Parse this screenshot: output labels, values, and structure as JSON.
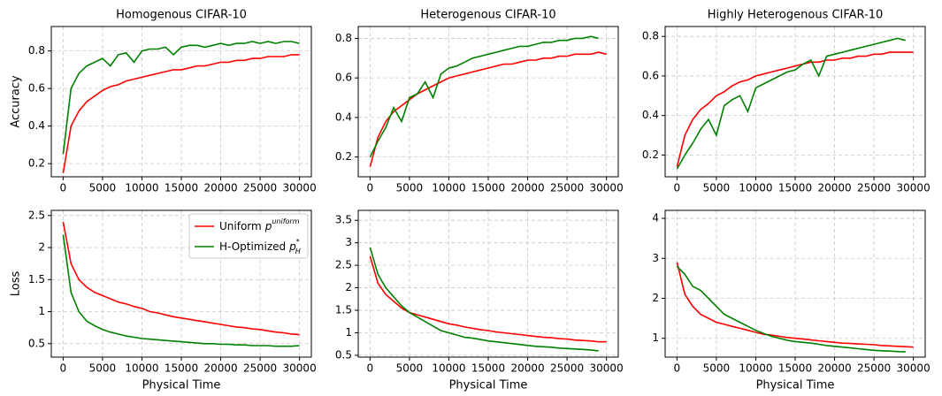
{
  "chart_data": [
    {
      "type": "line",
      "title": "Homogenous CIFAR-10",
      "ylabel": "Accuracy",
      "x": [
        0,
        1000,
        2000,
        3000,
        4000,
        5000,
        6000,
        7000,
        8000,
        9000,
        10000,
        11000,
        12000,
        13000,
        14000,
        15000,
        16000,
        17000,
        18000,
        19000,
        20000,
        21000,
        22000,
        23000,
        24000,
        25000,
        26000,
        27000,
        28000,
        29000,
        30000
      ],
      "series": [
        {
          "name": "Uniform",
          "symbol": "p",
          "sup": "uniform",
          "color": "#ff0000",
          "values": [
            0.15,
            0.4,
            0.48,
            0.53,
            0.56,
            0.59,
            0.61,
            0.62,
            0.64,
            0.65,
            0.66,
            0.67,
            0.68,
            0.69,
            0.7,
            0.7,
            0.71,
            0.72,
            0.72,
            0.73,
            0.74,
            0.74,
            0.75,
            0.75,
            0.76,
            0.76,
            0.77,
            0.77,
            0.77,
            0.78,
            0.78
          ]
        },
        {
          "name": "H-Optimized",
          "symbol": "p",
          "sup": "*",
          "sub": "H",
          "color": "#008000",
          "values": [
            0.25,
            0.6,
            0.68,
            0.72,
            0.74,
            0.76,
            0.72,
            0.78,
            0.79,
            0.74,
            0.8,
            0.81,
            0.81,
            0.82,
            0.78,
            0.82,
            0.83,
            0.83,
            0.82,
            0.83,
            0.84,
            0.83,
            0.84,
            0.84,
            0.85,
            0.84,
            0.85,
            0.84,
            0.85,
            0.85,
            0.84
          ]
        }
      ],
      "xlim": [
        -1500,
        31500
      ],
      "xticks": [
        0,
        5000,
        10000,
        15000,
        20000,
        25000,
        30000
      ],
      "ylim": [
        0.13,
        0.93
      ],
      "yticks": [
        0.2,
        0.4,
        0.6,
        0.8
      ],
      "grid": true,
      "legend": false
    },
    {
      "type": "line",
      "title": "Heterogenous CIFAR-10",
      "x": [
        0,
        1000,
        2000,
        3000,
        4000,
        5000,
        6000,
        7000,
        8000,
        9000,
        10000,
        11000,
        12000,
        13000,
        14000,
        15000,
        16000,
        17000,
        18000,
        19000,
        20000,
        21000,
        22000,
        23000,
        24000,
        25000,
        26000,
        27000,
        28000,
        29000,
        30000
      ],
      "series": [
        {
          "name": "Uniform",
          "symbol": "p",
          "sup": "uniform",
          "color": "#ff0000",
          "values": [
            0.15,
            0.3,
            0.38,
            0.43,
            0.46,
            0.49,
            0.52,
            0.54,
            0.56,
            0.58,
            0.6,
            0.61,
            0.62,
            0.63,
            0.64,
            0.65,
            0.66,
            0.67,
            0.67,
            0.68,
            0.69,
            0.69,
            0.7,
            0.7,
            0.71,
            0.71,
            0.72,
            0.72,
            0.72,
            0.73,
            0.72
          ]
        },
        {
          "name": "H-Optimized",
          "symbol": "p",
          "sup": "*",
          "sub": "H",
          "color": "#008000",
          "values": [
            0.2,
            0.28,
            0.35,
            0.45,
            0.38,
            0.5,
            0.52,
            0.58,
            0.5,
            0.62,
            0.65,
            0.66,
            0.68,
            0.7,
            0.71,
            0.72,
            0.73,
            0.74,
            0.75,
            0.76,
            0.76,
            0.77,
            0.78,
            0.78,
            0.79,
            0.79,
            0.8,
            0.8,
            0.81,
            0.8,
            null
          ]
        }
      ],
      "xlim": [
        -1500,
        31500
      ],
      "xticks": [
        0,
        5000,
        10000,
        15000,
        20000,
        25000,
        30000
      ],
      "ylim": [
        0.1,
        0.86
      ],
      "yticks": [
        0.2,
        0.4,
        0.6,
        0.8
      ],
      "grid": true,
      "legend": false
    },
    {
      "type": "line",
      "title": "Highly Heterogenous CIFAR-10",
      "x": [
        0,
        1000,
        2000,
        3000,
        4000,
        5000,
        6000,
        7000,
        8000,
        9000,
        10000,
        11000,
        12000,
        13000,
        14000,
        15000,
        16000,
        17000,
        18000,
        19000,
        20000,
        21000,
        22000,
        23000,
        24000,
        25000,
        26000,
        27000,
        28000,
        29000,
        30000
      ],
      "series": [
        {
          "name": "Uniform",
          "symbol": "p",
          "sup": "uniform",
          "color": "#ff0000",
          "values": [
            0.14,
            0.3,
            0.38,
            0.43,
            0.46,
            0.5,
            0.52,
            0.55,
            0.57,
            0.58,
            0.6,
            0.61,
            0.62,
            0.63,
            0.64,
            0.65,
            0.66,
            0.67,
            0.67,
            0.68,
            0.68,
            0.69,
            0.69,
            0.7,
            0.7,
            0.71,
            0.71,
            0.72,
            0.72,
            0.72,
            0.72
          ]
        },
        {
          "name": "H-Optimized",
          "symbol": "p",
          "sup": "*",
          "sub": "H",
          "color": "#008000",
          "values": [
            0.13,
            0.2,
            0.26,
            0.33,
            0.38,
            0.3,
            0.45,
            0.48,
            0.5,
            0.42,
            0.54,
            0.56,
            0.58,
            0.6,
            0.62,
            0.63,
            0.66,
            0.68,
            0.6,
            0.7,
            0.71,
            0.72,
            0.73,
            0.74,
            0.75,
            0.76,
            0.77,
            0.78,
            0.79,
            0.78,
            null
          ]
        }
      ],
      "xlim": [
        -1500,
        31500
      ],
      "xticks": [
        0,
        5000,
        10000,
        15000,
        20000,
        25000,
        30000
      ],
      "ylim": [
        0.09,
        0.85
      ],
      "yticks": [
        0.2,
        0.4,
        0.6,
        0.8
      ],
      "grid": true,
      "legend": false
    },
    {
      "type": "line",
      "ylabel": "Loss",
      "xlabel": "Physical Time",
      "x": [
        0,
        1000,
        2000,
        3000,
        4000,
        5000,
        6000,
        7000,
        8000,
        9000,
        10000,
        11000,
        12000,
        13000,
        14000,
        15000,
        16000,
        17000,
        18000,
        19000,
        20000,
        21000,
        22000,
        23000,
        24000,
        25000,
        26000,
        27000,
        28000,
        29000,
        30000
      ],
      "series": [
        {
          "name": "Uniform",
          "symbol": "p",
          "sup": "uniform",
          "color": "#ff0000",
          "values": [
            2.4,
            1.75,
            1.5,
            1.38,
            1.3,
            1.25,
            1.2,
            1.15,
            1.12,
            1.08,
            1.05,
            1.0,
            0.98,
            0.95,
            0.92,
            0.9,
            0.88,
            0.86,
            0.84,
            0.82,
            0.8,
            0.78,
            0.76,
            0.75,
            0.73,
            0.72,
            0.7,
            0.68,
            0.67,
            0.65,
            0.64
          ]
        },
        {
          "name": "H-Optimized",
          "symbol": "p",
          "sup": "*",
          "sub": "H",
          "color": "#008000",
          "values": [
            2.2,
            1.3,
            1.0,
            0.85,
            0.78,
            0.72,
            0.68,
            0.65,
            0.62,
            0.6,
            0.58,
            0.57,
            0.56,
            0.55,
            0.54,
            0.53,
            0.52,
            0.51,
            0.5,
            0.5,
            0.49,
            0.49,
            0.48,
            0.48,
            0.47,
            0.47,
            0.47,
            0.46,
            0.46,
            0.46,
            0.47
          ]
        }
      ],
      "xlim": [
        -1500,
        31500
      ],
      "xticks": [
        0,
        5000,
        10000,
        15000,
        20000,
        25000,
        30000
      ],
      "ylim": [
        0.29,
        2.58
      ],
      "yticks": [
        0.5,
        1.0,
        1.5,
        2.0,
        2.5
      ],
      "grid": true,
      "legend": "upper right"
    },
    {
      "type": "line",
      "xlabel": "Physical Time",
      "x": [
        0,
        1000,
        2000,
        3000,
        4000,
        5000,
        6000,
        7000,
        8000,
        9000,
        10000,
        11000,
        12000,
        13000,
        14000,
        15000,
        16000,
        17000,
        18000,
        19000,
        20000,
        21000,
        22000,
        23000,
        24000,
        25000,
        26000,
        27000,
        28000,
        29000,
        30000
      ],
      "series": [
        {
          "name": "Uniform",
          "symbol": "p",
          "sup": "uniform",
          "color": "#ff0000",
          "values": [
            2.7,
            2.1,
            1.85,
            1.7,
            1.55,
            1.45,
            1.4,
            1.35,
            1.3,
            1.25,
            1.2,
            1.17,
            1.13,
            1.1,
            1.07,
            1.05,
            1.02,
            1.0,
            0.98,
            0.96,
            0.94,
            0.92,
            0.9,
            0.89,
            0.87,
            0.86,
            0.84,
            0.83,
            0.82,
            0.8,
            0.8
          ]
        },
        {
          "name": "H-Optimized",
          "symbol": "p",
          "sup": "*",
          "sub": "H",
          "color": "#008000",
          "values": [
            2.9,
            2.3,
            2.0,
            1.8,
            1.6,
            1.45,
            1.35,
            1.25,
            1.15,
            1.05,
            1.0,
            0.95,
            0.9,
            0.88,
            0.85,
            0.82,
            0.8,
            0.78,
            0.76,
            0.74,
            0.72,
            0.7,
            0.69,
            0.68,
            0.66,
            0.65,
            0.64,
            0.63,
            0.62,
            0.6,
            null
          ]
        }
      ],
      "xlim": [
        -1500,
        31500
      ],
      "xticks": [
        0,
        5000,
        10000,
        15000,
        20000,
        25000,
        30000
      ],
      "ylim": [
        0.46,
        3.72
      ],
      "yticks": [
        0.5,
        1.0,
        1.5,
        2.0,
        2.5,
        3.0,
        3.5
      ],
      "grid": true,
      "legend": false
    },
    {
      "type": "line",
      "xlabel": "Physical Time",
      "x": [
        0,
        1000,
        2000,
        3000,
        4000,
        5000,
        6000,
        7000,
        8000,
        9000,
        10000,
        11000,
        12000,
        13000,
        14000,
        15000,
        16000,
        17000,
        18000,
        19000,
        20000,
        21000,
        22000,
        23000,
        24000,
        25000,
        26000,
        27000,
        28000,
        29000,
        30000
      ],
      "series": [
        {
          "name": "Uniform",
          "symbol": "p",
          "sup": "uniform",
          "color": "#ff0000",
          "values": [
            2.9,
            2.1,
            1.8,
            1.6,
            1.5,
            1.4,
            1.35,
            1.3,
            1.25,
            1.2,
            1.15,
            1.1,
            1.08,
            1.05,
            1.02,
            1.0,
            0.98,
            0.96,
            0.94,
            0.92,
            0.9,
            0.88,
            0.87,
            0.86,
            0.85,
            0.84,
            0.82,
            0.81,
            0.8,
            0.79,
            0.78
          ]
        },
        {
          "name": "H-Optimized",
          "symbol": "p",
          "sup": "*",
          "sub": "H",
          "color": "#008000",
          "values": [
            2.8,
            2.6,
            2.3,
            2.2,
            2.0,
            1.8,
            1.6,
            1.5,
            1.4,
            1.3,
            1.2,
            1.12,
            1.05,
            1.0,
            0.95,
            0.92,
            0.9,
            0.88,
            0.85,
            0.82,
            0.8,
            0.78,
            0.76,
            0.74,
            0.72,
            0.7,
            0.69,
            0.68,
            0.67,
            0.66,
            null
          ]
        }
      ],
      "xlim": [
        -1500,
        31500
      ],
      "xticks": [
        0,
        5000,
        10000,
        15000,
        20000,
        25000,
        30000
      ],
      "ylim": [
        0.53,
        4.2
      ],
      "yticks": [
        1,
        2,
        3,
        4
      ],
      "grid": true,
      "legend": false
    }
  ]
}
